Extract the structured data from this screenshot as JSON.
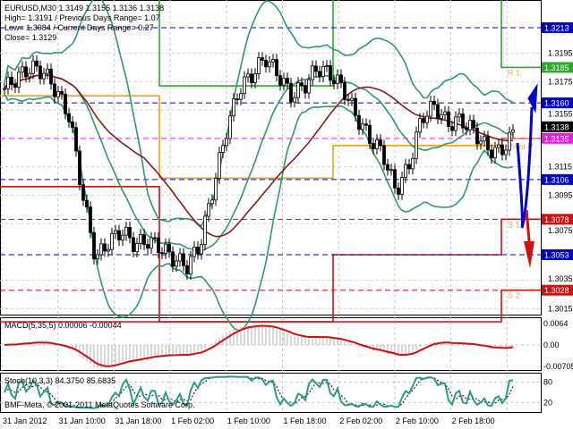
{
  "header": {
    "symbol_line": "EURUSD,M30  1.3149 1.3155 1.3136 1.3138",
    "high": "High= 1.3191",
    "prev_range": "Previous Days Range= 1.07",
    "low": "Low= 1.3084",
    "cur_range": "Current Days Range= 0.27",
    "close": "Close= 1.3129"
  },
  "colors": {
    "candle": "#000000",
    "bands": "#2e9a6a",
    "ma": "#8b1a1a",
    "blue": "#0000c8",
    "red": "#d01010",
    "green": "#2ea82e",
    "orange": "#f0a020",
    "magenta": "#e020e0",
    "stoch": "#2e9a8a"
  },
  "price_axis": {
    "min": 1.301,
    "max": 1.3232,
    "ticks": [
      "1.3195",
      "1.3175",
      "1.3155",
      "1.3115",
      "1.3095",
      "1.3075",
      "1.3035",
      "1.3015"
    ]
  },
  "price_tags": [
    {
      "value": "1.3213",
      "color": "#0000c8"
    },
    {
      "value": "1.3185",
      "color": "#2ea82e"
    },
    {
      "value": "1.3160",
      "color": "#0000c8"
    },
    {
      "value": "1.3138",
      "color": "#000000"
    },
    {
      "value": "1.3135",
      "color": "#e020e0"
    },
    {
      "value": "1.3106",
      "color": "#0000c8"
    },
    {
      "value": "1.3078",
      "color": "#d01010"
    },
    {
      "value": "1.3053",
      "color": "#0000c8"
    },
    {
      "value": "1.3028",
      "color": "#d01010"
    }
  ],
  "level_labels": {
    "r1": "R 1",
    "pivot": "Pivot P",
    "s1": "S 1",
    "s2": "S 2"
  },
  "pivot_days": [
    {
      "r1": 1.324,
      "pivot": 1.3165,
      "s1": 1.3101,
      "s2": 1.3
    },
    {
      "r1": 1.3172,
      "pivot": 1.3107,
      "s1": 1.3,
      "s2": 1.299
    },
    {
      "r1": 1.324,
      "pivot": 1.313,
      "s1": 1.3053,
      "s2": 1.3
    },
    {
      "r1": 1.3185,
      "pivot": 1.3135,
      "s1": 1.3078,
      "s2": 1.3028
    }
  ],
  "closes": [
    1.317,
    1.3178,
    1.3185,
    1.3182,
    1.3168,
    1.315,
    1.3095,
    1.305,
    1.3062,
    1.307,
    1.306,
    1.3063,
    1.3058,
    1.305,
    1.3045,
    1.306,
    1.31,
    1.314,
    1.317,
    1.318,
    1.3192,
    1.318,
    1.3165,
    1.3172,
    1.3185,
    1.318,
    1.317,
    1.315,
    1.3135,
    1.3125,
    1.3098,
    1.3115,
    1.315,
    1.3158,
    1.3145,
    1.3148,
    1.314,
    1.3128,
    1.3125,
    1.3138
  ],
  "macd": {
    "label": "MACD(5,35,5) 0.00006 -0.00044",
    "ticks": [
      "0.0064",
      "0.00",
      "-0.00705"
    ]
  },
  "stoch": {
    "label": "Stoch(10,3,3) 84.3750 85.6835",
    "ticks": [
      "80",
      "20"
    ]
  },
  "copyright": "BMF-Meta, © 2001-2011 MetaQuotes Software Corp.",
  "time_axis": [
    "31 Jan 2012",
    "31 Jan 10:00",
    "31 Jan 18:00",
    "1 Feb 02:00",
    "1 Feb 10:00",
    "1 Feb 18:00",
    "2 Feb 02:00",
    "2 Feb 10:00",
    "2 Feb 18:00"
  ]
}
